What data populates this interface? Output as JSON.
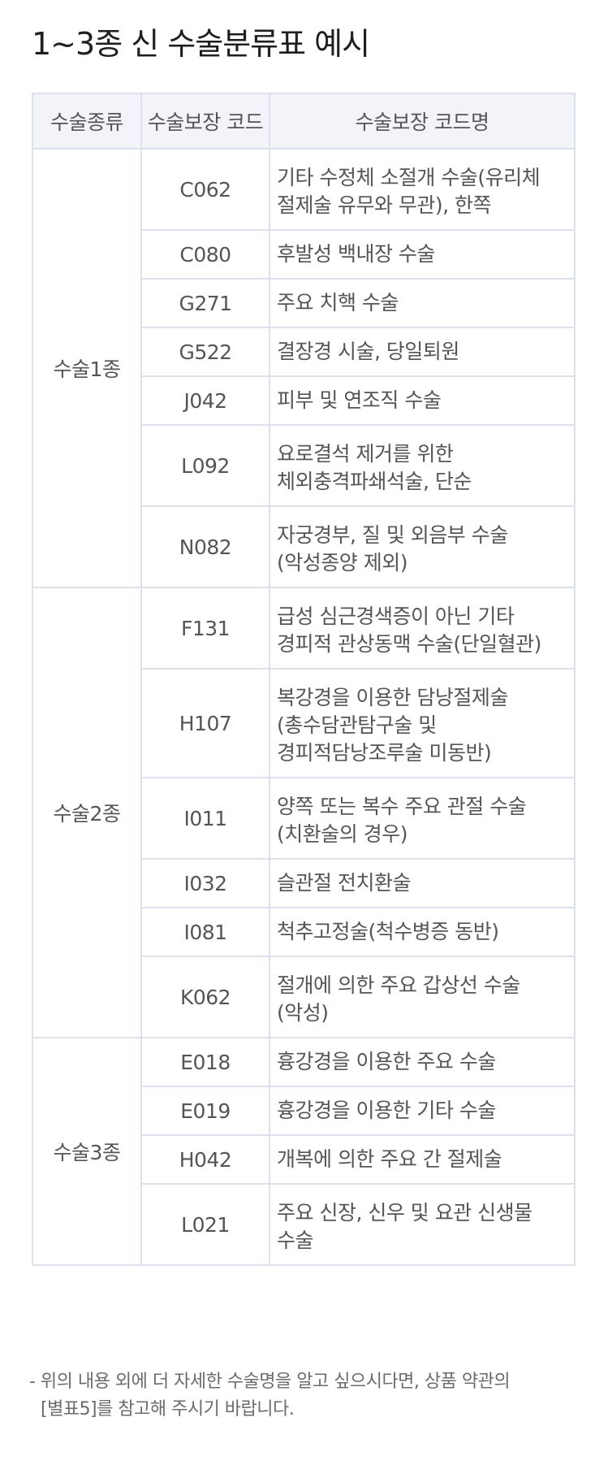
{
  "title": "1~3종 신 수술분류표 예시",
  "table": {
    "headers": [
      "수술종류",
      "수술보장 코드",
      "수술보장 코드명"
    ],
    "groups": [
      {
        "type": "수술1종",
        "rows": [
          {
            "code": "C062",
            "name": [
              "기타 수정체 소절개 수술(유리체",
              "절제술 유무와 무관), 한쪽"
            ]
          },
          {
            "code": "C080",
            "name": [
              "후발성 백내장 수술"
            ]
          },
          {
            "code": "G271",
            "name": [
              "주요 치핵 수술"
            ]
          },
          {
            "code": "G522",
            "name": [
              "결장경 시술, 당일퇴원"
            ]
          },
          {
            "code": "J042",
            "name": [
              "피부 및 연조직 수술"
            ]
          },
          {
            "code": "L092",
            "name": [
              "요로결석 제거를 위한",
              "체외충격파쇄석술, 단순"
            ]
          },
          {
            "code": "N082",
            "name": [
              "자궁경부, 질 및 외음부 수술",
              "(악성종양 제외)"
            ]
          }
        ]
      },
      {
        "type": "수술2종",
        "rows": [
          {
            "code": "F131",
            "name": [
              "급성 심근경색증이 아닌 기타",
              "경피적 관상동맥 수술(단일혈관)"
            ]
          },
          {
            "code": "H107",
            "name": [
              "복강경을 이용한 담낭절제술",
              "(총수담관탐구술 및",
              "경피적담낭조루술 미동반)"
            ]
          },
          {
            "code": "I011",
            "name": [
              "양쪽 또는 복수 주요 관절 수술",
              "(치환술의 경우)"
            ]
          },
          {
            "code": "I032",
            "name": [
              "슬관절 전치환술"
            ]
          },
          {
            "code": "I081",
            "name": [
              "척추고정술(척수병증 동반)"
            ]
          },
          {
            "code": "K062",
            "name": [
              "절개에 의한 주요 갑상선 수술",
              "(악성)"
            ]
          }
        ]
      },
      {
        "type": "수술3종",
        "rows": [
          {
            "code": "E018",
            "name": [
              "흉강경을 이용한 주요 수술"
            ]
          },
          {
            "code": "E019",
            "name": [
              "흉강경을 이용한 기타 수술"
            ]
          },
          {
            "code": "H042",
            "name": [
              "개복에 의한 주요 간 절제술"
            ]
          },
          {
            "code": "L021",
            "name": [
              "주요 신장, 신우 및 요관 신생물",
              "수술"
            ]
          }
        ]
      }
    ]
  },
  "footnote": {
    "line1": "- 위의 내용 외에 더 자세한 수술명을 알고 싶으시다면, 상품 약관의",
    "line2": "[별표5]를 참고해 주시기 바랍니다."
  },
  "colors": {
    "border": "#dde1ea",
    "header_bg": "#f3f4f9",
    "text": "#555555",
    "title": "#1f1f1f"
  }
}
